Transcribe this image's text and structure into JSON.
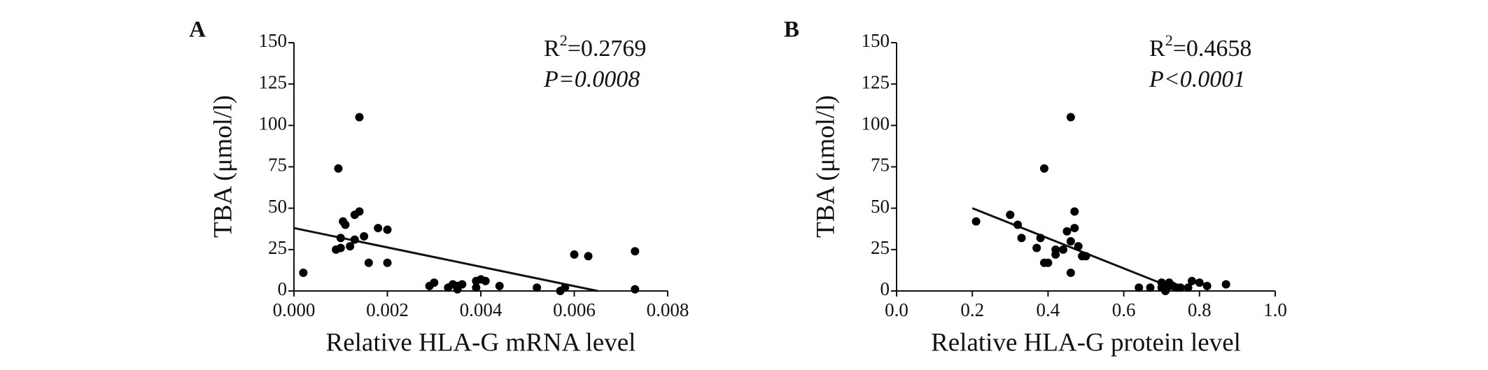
{
  "chart_data": [
    {
      "type": "scatter",
      "panel_label": "A",
      "x_label": "Relative HLA-G mRNA level",
      "y_label": "TBA (μmol/l)",
      "r2_label": [
        "R",
        "2",
        "=0.2769"
      ],
      "p_label": "P=0.0008",
      "color": "#000000",
      "x": [
        0.0002,
        0.0009,
        0.00095,
        0.001,
        0.001,
        0.00105,
        0.0011,
        0.0012,
        0.0013,
        0.0013,
        0.0014,
        0.0014,
        0.0015,
        0.0016,
        0.0018,
        0.002,
        0.002,
        0.0029,
        0.003,
        0.0033,
        0.0034,
        0.0035,
        0.0035,
        0.0036,
        0.0039,
        0.0039,
        0.004,
        0.0041,
        0.0044,
        0.0052,
        0.0057,
        0.0058,
        0.006,
        0.0063,
        0.0073,
        0.0073
      ],
      "values": [
        11,
        25,
        74,
        32,
        26,
        42,
        40,
        27,
        46,
        31,
        48,
        105,
        33,
        17,
        38,
        37,
        17,
        3,
        5,
        2,
        4,
        3,
        1,
        4,
        6,
        2,
        7,
        6,
        3,
        2,
        0,
        2,
        22,
        21,
        24,
        1
      ],
      "fit": {
        "x": [
          0,
          0.0065
        ],
        "values": [
          38,
          0
        ]
      },
      "xlim": [
        0,
        0.008
      ],
      "xticks": [
        {
          "value": 0,
          "label": "0.000"
        },
        {
          "value": 0.002,
          "label": "0.002"
        },
        {
          "value": 0.004,
          "label": "0.004"
        },
        {
          "value": 0.006,
          "label": "0.006"
        },
        {
          "value": 0.008,
          "label": "0.008"
        }
      ],
      "ylim": [
        0,
        150
      ],
      "yticks": [
        0,
        25,
        50,
        75,
        100,
        125,
        150
      ]
    },
    {
      "type": "scatter",
      "panel_label": "B",
      "x_label": "Relative HLA-G protein level",
      "y_label": "TBA (μmol/l)",
      "r2_label": [
        "R",
        "2",
        "=0.4658"
      ],
      "p_label": "P<0.0001",
      "color": "#000000",
      "x": [
        0.21,
        0.3,
        0.32,
        0.33,
        0.37,
        0.38,
        0.39,
        0.39,
        0.4,
        0.42,
        0.42,
        0.44,
        0.45,
        0.46,
        0.46,
        0.46,
        0.47,
        0.47,
        0.48,
        0.49,
        0.5,
        0.64,
        0.67,
        0.7,
        0.7,
        0.71,
        0.72,
        0.72,
        0.73,
        0.74,
        0.75,
        0.77,
        0.78,
        0.8,
        0.82,
        0.87
      ],
      "values": [
        42,
        46,
        40,
        32,
        26,
        32,
        17,
        74,
        17,
        25,
        22,
        25,
        36,
        30,
        105,
        11,
        38,
        48,
        27,
        21,
        21,
        2,
        2,
        5,
        2,
        0,
        5,
        3,
        3,
        2,
        2,
        2,
        6,
        5,
        3,
        4
      ],
      "fit": {
        "x": [
          0.2,
          0.75
        ],
        "values": [
          50,
          0
        ]
      },
      "xlim": [
        0,
        1
      ],
      "xticks": [
        {
          "value": 0,
          "label": "0.0"
        },
        {
          "value": 0.2,
          "label": "0.2"
        },
        {
          "value": 0.4,
          "label": "0.4"
        },
        {
          "value": 0.6,
          "label": "0.6"
        },
        {
          "value": 0.8,
          "label": "0.8"
        },
        {
          "value": 1,
          "label": "1.0"
        }
      ],
      "ylim": [
        0,
        150
      ],
      "yticks": [
        0,
        25,
        50,
        75,
        100,
        125,
        150
      ]
    }
  ]
}
